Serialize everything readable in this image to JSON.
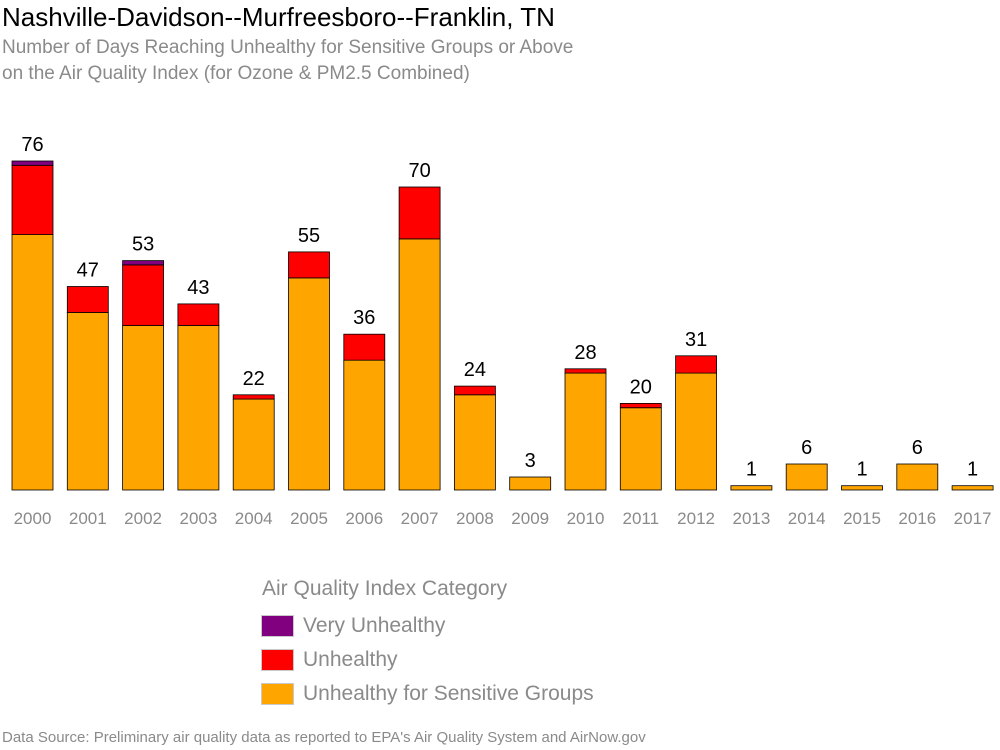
{
  "title": "Nashville-Davidson--Murfreesboro--Franklin, TN",
  "subtitle_lines": [
    "Number of Days Reaching Unhealthy for Sensitive Groups or Above",
    "on the Air Quality Index (for Ozone & PM2.5 Combined)"
  ],
  "legend": {
    "title": "Air Quality Index Category",
    "items": [
      {
        "label": "Very Unhealthy",
        "color": "#800080"
      },
      {
        "label": "Unhealthy",
        "color": "#ff0000"
      },
      {
        "label": "Unhealthy for Sensitive Groups",
        "color": "#ffa500"
      }
    ]
  },
  "source": "Data Source: Preliminary air quality data as reported to EPA's Air Quality System and AirNow.gov",
  "chart_data": {
    "type": "bar",
    "stacked": true,
    "categories": [
      "2000",
      "2001",
      "2002",
      "2003",
      "2004",
      "2005",
      "2006",
      "2007",
      "2008",
      "2009",
      "2010",
      "2011",
      "2012",
      "2013",
      "2014",
      "2015",
      "2016",
      "2017"
    ],
    "series": [
      {
        "name": "Unhealthy for Sensitive Groups",
        "color": "#ffa500",
        "values": [
          59,
          41,
          38,
          38,
          21,
          49,
          30,
          58,
          22,
          3,
          27,
          19,
          27,
          1,
          6,
          1,
          6,
          1
        ]
      },
      {
        "name": "Unhealthy",
        "color": "#ff0000",
        "values": [
          16,
          6,
          14,
          5,
          1,
          6,
          6,
          12,
          2,
          0,
          1,
          1,
          4,
          0,
          0,
          0,
          0,
          0
        ]
      },
      {
        "name": "Very Unhealthy",
        "color": "#800080",
        "values": [
          1,
          0,
          1,
          0,
          0,
          0,
          0,
          0,
          0,
          0,
          0,
          0,
          0,
          0,
          0,
          0,
          0,
          0
        ]
      }
    ],
    "totals": [
      76,
      47,
      53,
      43,
      22,
      55,
      36,
      70,
      24,
      3,
      28,
      20,
      31,
      1,
      6,
      1,
      6,
      1
    ],
    "ylim": [
      0,
      76
    ],
    "grid": false,
    "legend_position": "bottom"
  }
}
